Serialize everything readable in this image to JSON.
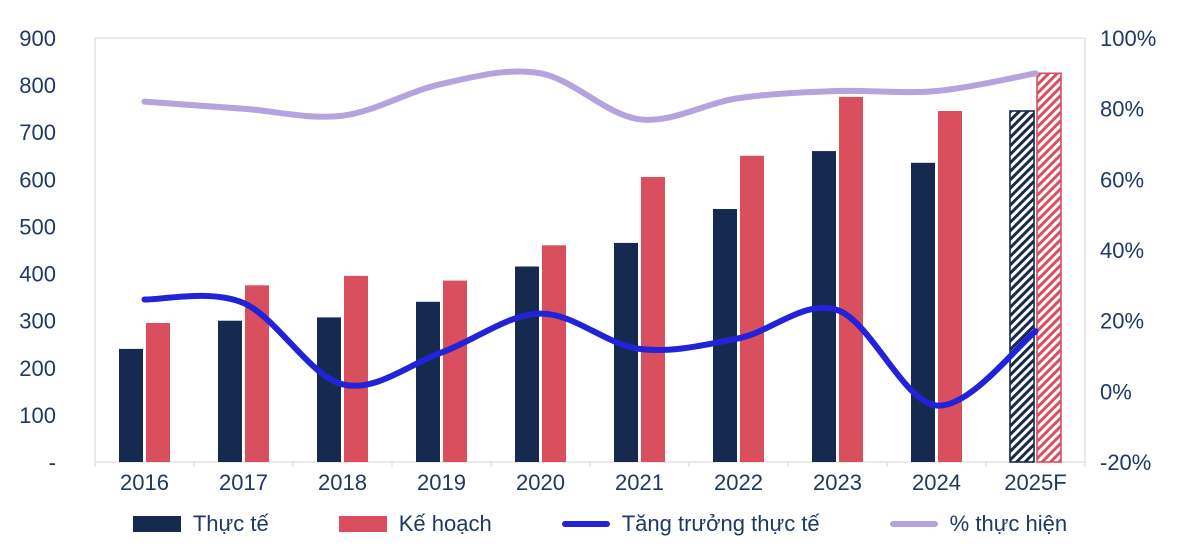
{
  "chart_data": {
    "type": "combo-bar-line",
    "title": "",
    "categories": [
      "2016",
      "2017",
      "2018",
      "2019",
      "2020",
      "2021",
      "2022",
      "2023",
      "2024",
      "2025F"
    ],
    "forecast_category": "2025F",
    "bar_series": [
      {
        "name": "Thực tế",
        "color": "#16294E",
        "axis": "left",
        "values": [
          240,
          300,
          307,
          340,
          415,
          465,
          537,
          660,
          635,
          745
        ]
      },
      {
        "name": "Kế hoạch",
        "color": "#D94F5D",
        "axis": "left",
        "values": [
          295,
          375,
          395,
          385,
          460,
          605,
          650,
          775,
          745,
          825
        ]
      }
    ],
    "line_series": [
      {
        "name": "Tăng trưởng thực tế",
        "color": "#2222D9",
        "axis": "right",
        "values": [
          26,
          25,
          2,
          11,
          22,
          12,
          15,
          23,
          -4,
          17
        ]
      },
      {
        "name": "% thực hiện",
        "color": "#B4A3DE",
        "axis": "right",
        "values": [
          82,
          80,
          78,
          87,
          90,
          77,
          83,
          85,
          85,
          90
        ]
      }
    ],
    "left_axis": {
      "min": 0,
      "max": 900,
      "step": 100,
      "labels": [
        "900",
        "800",
        "700",
        "600",
        "500",
        "400",
        "300",
        "200",
        "100",
        "-"
      ]
    },
    "right_axis": {
      "min": -20,
      "max": 100,
      "step": 20,
      "labels": [
        "100%",
        "80%",
        "60%",
        "40%",
        "20%",
        "0%",
        "-20%"
      ]
    },
    "grid": false,
    "legend_position": "bottom",
    "text_color": "#1F3864",
    "frame_color": "#D6D6D6"
  }
}
